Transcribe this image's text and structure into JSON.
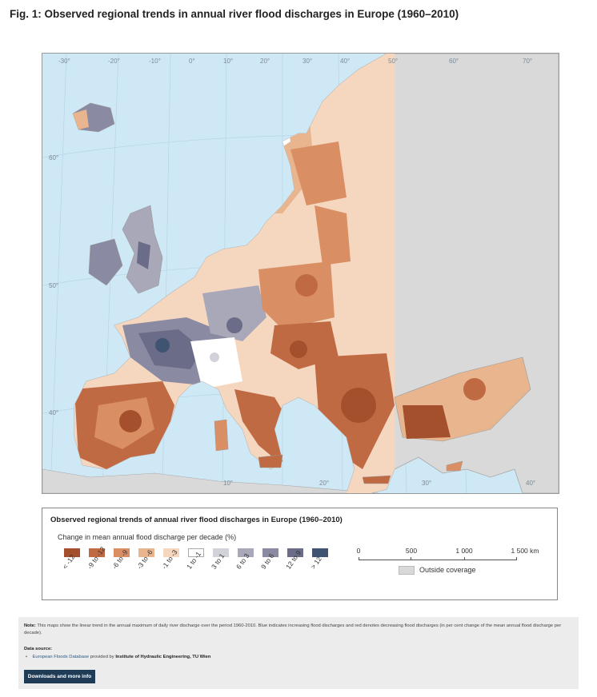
{
  "figure": {
    "title": "Fig. 1: Observed regional trends in annual river flood discharges in Europe (1960–2010)"
  },
  "map": {
    "longitude_labels": [
      "-30°",
      "-20°",
      "-10°",
      "0°",
      "10°",
      "20°",
      "30°",
      "40°",
      "50°",
      "60°",
      "70°"
    ],
    "bottom_labels": [
      "10°",
      "20°",
      "30°",
      "40°"
    ],
    "latitude_labels": [
      "60°",
      "50°",
      "40°"
    ],
    "colors": {
      "sea": "#cfe8f5",
      "outside_coverage": "#d9d9d9",
      "border": "#9b9b9b"
    }
  },
  "legend": {
    "title": "Observed regional trends of annual river flood discharges in Europe (1960–2010)",
    "subtitle": "Change in mean annual flood discharge per decade (%)",
    "classes": [
      {
        "label": "< -12",
        "color": "#a4502c"
      },
      {
        "label": "-9 to -12",
        "color": "#c06a44"
      },
      {
        "label": "-6 to -9",
        "color": "#d98e64"
      },
      {
        "label": "-3 to -6",
        "color": "#e9b58e"
      },
      {
        "label": "-1 to -3",
        "color": "#f5d6bf"
      },
      {
        "label": "1 to -1",
        "color": "#ffffff"
      },
      {
        "label": "3 to 1",
        "color": "#d2d2da"
      },
      {
        "label": "6 to 3",
        "color": "#a8a8b8"
      },
      {
        "label": "9 to 6",
        "color": "#8a8aa2"
      },
      {
        "label": "12 to 9",
        "color": "#6a6c88"
      },
      {
        "label": "> 12",
        "color": "#3e5470"
      }
    ],
    "scale": {
      "labels": [
        "0",
        "500",
        "1 000",
        "1 500 km"
      ]
    },
    "outside_coverage": {
      "label": "Outside coverage",
      "color": "#d9d9d9"
    }
  },
  "footer": {
    "note_label": "Note:",
    "note_text": "This maps show the linear trend in the annual maximum of daily river discharge over the period 1960-2010. Blue indicates increasing flood discharges and red denotes decreasing flood discharges (in per cent change of the mean annual flood discharge per decade).",
    "data_source_heading": "Data source:",
    "data_source_link": "European Floods Database",
    "data_source_mid": "provided by",
    "data_source_org": "Institute of Hydraulic Engineering, TU Wien",
    "button_label": "Downloads and more info"
  }
}
